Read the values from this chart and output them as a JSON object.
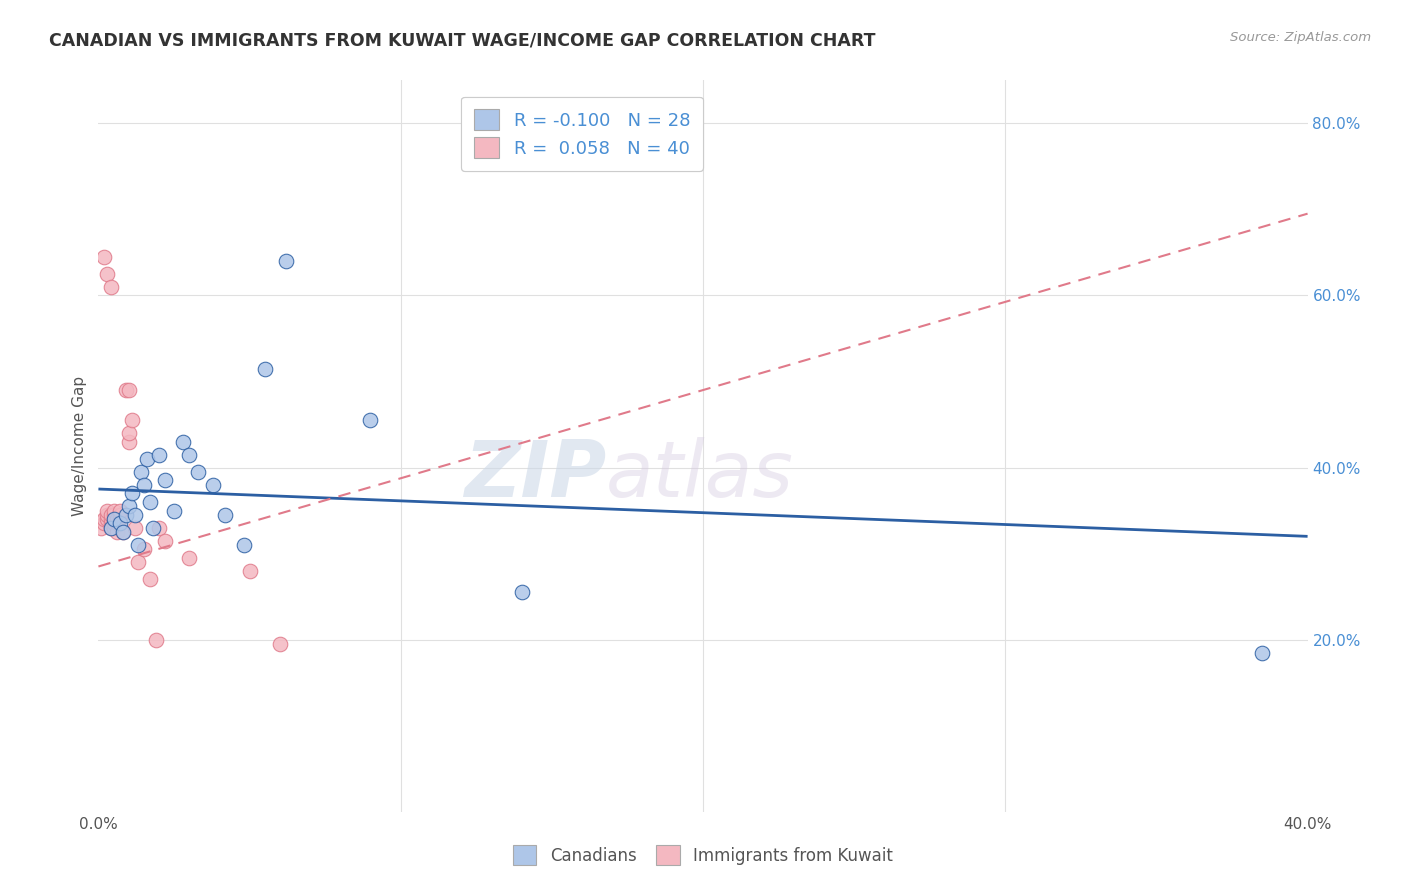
{
  "title": "CANADIAN VS IMMIGRANTS FROM KUWAIT WAGE/INCOME GAP CORRELATION CHART",
  "source": "Source: ZipAtlas.com",
  "ylabel": "Wage/Income Gap",
  "xlim": [
    0.0,
    0.4
  ],
  "ylim": [
    0.0,
    0.85
  ],
  "xtick_labels": [
    "0.0%",
    "",
    "",
    "",
    "",
    "",
    "40.0%"
  ],
  "xtick_vals": [
    0.0,
    0.05,
    0.1,
    0.2,
    0.25,
    0.3,
    0.4
  ],
  "ytick_labels": [
    "20.0%",
    "40.0%",
    "60.0%",
    "80.0%"
  ],
  "ytick_vals": [
    0.2,
    0.4,
    0.6,
    0.8
  ],
  "canadians_x": [
    0.004,
    0.005,
    0.007,
    0.008,
    0.009,
    0.01,
    0.011,
    0.012,
    0.013,
    0.014,
    0.015,
    0.016,
    0.017,
    0.018,
    0.02,
    0.022,
    0.025,
    0.028,
    0.03,
    0.033,
    0.038,
    0.042,
    0.048,
    0.055,
    0.062,
    0.09,
    0.14,
    0.385
  ],
  "canadians_y": [
    0.33,
    0.34,
    0.335,
    0.325,
    0.345,
    0.355,
    0.37,
    0.345,
    0.31,
    0.395,
    0.38,
    0.41,
    0.36,
    0.33,
    0.415,
    0.385,
    0.35,
    0.43,
    0.415,
    0.395,
    0.38,
    0.345,
    0.31,
    0.515,
    0.64,
    0.455,
    0.255,
    0.185
  ],
  "kuwait_x": [
    0.001,
    0.002,
    0.002,
    0.003,
    0.003,
    0.003,
    0.004,
    0.004,
    0.004,
    0.004,
    0.005,
    0.005,
    0.005,
    0.005,
    0.005,
    0.006,
    0.006,
    0.006,
    0.007,
    0.007,
    0.007,
    0.008,
    0.009,
    0.01,
    0.01,
    0.01,
    0.011,
    0.012,
    0.013,
    0.015,
    0.017,
    0.019,
    0.02,
    0.022,
    0.03,
    0.05,
    0.06,
    0.002,
    0.003,
    0.004
  ],
  "kuwait_y": [
    0.33,
    0.335,
    0.34,
    0.34,
    0.345,
    0.35,
    0.33,
    0.335,
    0.34,
    0.345,
    0.33,
    0.335,
    0.34,
    0.345,
    0.35,
    0.325,
    0.335,
    0.34,
    0.34,
    0.345,
    0.35,
    0.325,
    0.49,
    0.43,
    0.44,
    0.49,
    0.455,
    0.33,
    0.29,
    0.305,
    0.27,
    0.2,
    0.33,
    0.315,
    0.295,
    0.28,
    0.195,
    0.645,
    0.625,
    0.61
  ],
  "canadian_color": "#aec6e8",
  "kuwait_color": "#f4b8c1",
  "canadian_line_color": "#2c5fa3",
  "kuwait_line_color": "#e07a8a",
  "canadian_R": -0.1,
  "canadian_N": 28,
  "kuwait_R": 0.058,
  "kuwait_N": 40,
  "watermark_zip": "ZIP",
  "watermark_atlas": "atlas",
  "background_color": "#ffffff",
  "grid_color": "#e0e0e0"
}
